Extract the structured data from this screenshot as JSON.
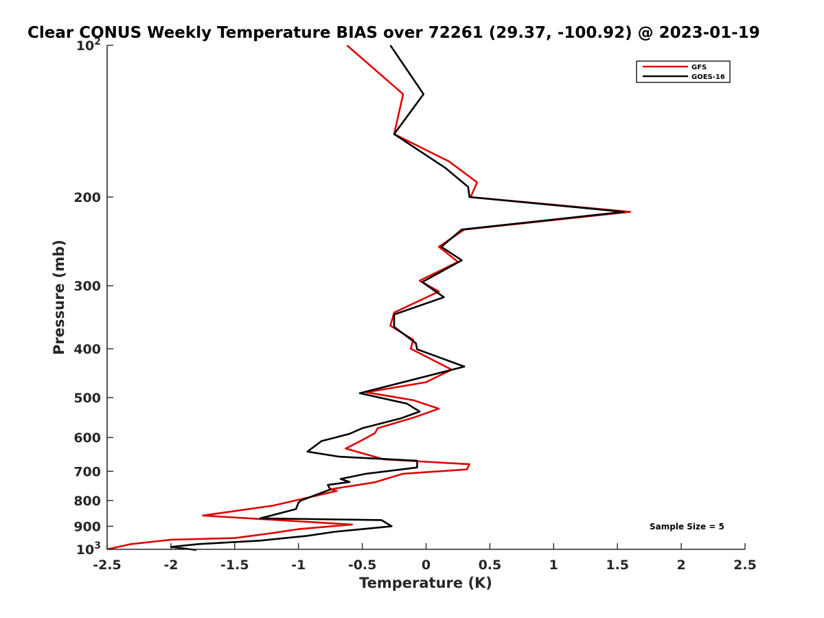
{
  "chart_data": {
    "type": "line",
    "title": "Clear CONUS Weekly Temperature BIAS over 72261 (29.37, -100.92) @ 2023-01-19",
    "xlabel": "Temperature (K)",
    "ylabel": "Pressure (mb)",
    "xlim": [
      -2.5,
      2.5
    ],
    "ylim": [
      100,
      1000
    ],
    "y_scale": "log",
    "y_reversed": true,
    "x_ticks": [
      "-2.5",
      "-2",
      "-1.5",
      "-1",
      "-0.5",
      "0",
      "0.5",
      "1",
      "1.5",
      "2",
      "2.5"
    ],
    "y_ticks": [
      {
        "value": 100,
        "base": "10",
        "exp": "2"
      },
      {
        "value": 200,
        "label": "200"
      },
      {
        "value": 300,
        "label": "300"
      },
      {
        "value": 400,
        "label": "400"
      },
      {
        "value": 500,
        "label": "500"
      },
      {
        "value": 600,
        "label": "600"
      },
      {
        "value": 700,
        "label": "700"
      },
      {
        "value": 800,
        "label": "800"
      },
      {
        "value": 900,
        "label": "900"
      },
      {
        "value": 1000,
        "base": "10",
        "exp": "3"
      }
    ],
    "legend": {
      "position": "top-right"
    },
    "annotation": "Sample Size = 5",
    "series": [
      {
        "name": "GFS",
        "color": "#e00000",
        "points": [
          [
            -0.62,
            100
          ],
          [
            -0.18,
            125
          ],
          [
            -0.25,
            150
          ],
          [
            0.18,
            170
          ],
          [
            0.4,
            187
          ],
          [
            0.35,
            200
          ],
          [
            1.6,
            214
          ],
          [
            0.3,
            232
          ],
          [
            0.1,
            251
          ],
          [
            0.25,
            269
          ],
          [
            -0.05,
            293
          ],
          [
            0.1,
            308
          ],
          [
            -0.25,
            339
          ],
          [
            -0.28,
            360
          ],
          [
            -0.1,
            384
          ],
          [
            -0.12,
            400
          ],
          [
            0.2,
            440
          ],
          [
            0.0,
            466
          ],
          [
            -0.47,
            488
          ],
          [
            -0.1,
            506
          ],
          [
            0.1,
            526
          ],
          [
            -0.1,
            548
          ],
          [
            -0.38,
            575
          ],
          [
            -0.4,
            588
          ],
          [
            -0.5,
            607
          ],
          [
            -0.63,
            631
          ],
          [
            -0.33,
            663
          ],
          [
            0.34,
            678
          ],
          [
            0.32,
            694
          ],
          [
            -0.18,
            708
          ],
          [
            -0.4,
            736
          ],
          [
            -0.75,
            760
          ],
          [
            -0.7,
            766
          ],
          [
            -1.2,
            819
          ],
          [
            -1.75,
            857
          ],
          [
            -0.58,
            893
          ],
          [
            -1.0,
            912
          ],
          [
            -1.2,
            928
          ],
          [
            -1.5,
            950
          ],
          [
            -2.0,
            957
          ],
          [
            -2.32,
            977
          ],
          [
            -2.5,
            1000
          ]
        ]
      },
      {
        "name": "GOES-16",
        "color": "#000000",
        "points": [
          [
            -0.28,
            100
          ],
          [
            -0.02,
            125
          ],
          [
            -0.25,
            150
          ],
          [
            0.15,
            175
          ],
          [
            0.33,
            191
          ],
          [
            0.34,
            200
          ],
          [
            1.55,
            214
          ],
          [
            0.28,
            232
          ],
          [
            0.12,
            251
          ],
          [
            0.28,
            267
          ],
          [
            -0.03,
            295
          ],
          [
            0.14,
            316
          ],
          [
            -0.25,
            342
          ],
          [
            -0.25,
            362
          ],
          [
            -0.08,
            390
          ],
          [
            -0.07,
            401
          ],
          [
            0.3,
            434
          ],
          [
            -0.52,
            490
          ],
          [
            -0.15,
            514
          ],
          [
            -0.05,
            533
          ],
          [
            -0.2,
            550
          ],
          [
            -0.5,
            575
          ],
          [
            -0.6,
            590
          ],
          [
            -0.82,
            610
          ],
          [
            -0.93,
            640
          ],
          [
            -0.68,
            655
          ],
          [
            -0.07,
            667
          ],
          [
            -0.07,
            688
          ],
          [
            -0.47,
            708
          ],
          [
            -0.67,
            725
          ],
          [
            -0.6,
            735
          ],
          [
            -0.77,
            745
          ],
          [
            -0.75,
            761
          ],
          [
            -0.98,
            800
          ],
          [
            -1.0,
            808
          ],
          [
            -1.02,
            832
          ],
          [
            -1.3,
            868
          ],
          [
            -0.35,
            875
          ],
          [
            -0.27,
            900
          ],
          [
            -0.72,
            923
          ],
          [
            -0.93,
            940
          ],
          [
            -1.3,
            961
          ],
          [
            -1.78,
            976
          ],
          [
            -2.0,
            989
          ],
          [
            -1.8,
            1003
          ]
        ]
      }
    ]
  }
}
